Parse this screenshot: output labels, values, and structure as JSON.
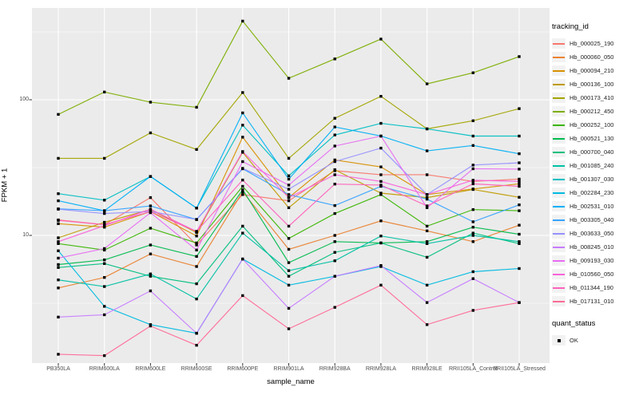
{
  "chart_data": {
    "type": "line",
    "title": "",
    "xlabel": "sample_name",
    "ylabel": "FPKM + 1",
    "y_scale": "log10",
    "y_ticks": [
      {
        "label": "100",
        "value": 100
      },
      {
        "label": "10",
        "value": 10
      }
    ],
    "y_minor_gridlines": [
      316.23,
      31.623,
      3.1623
    ],
    "grid": true,
    "panel_background": "#ebebeb",
    "gridline_color": "#ffffff",
    "tick_color": "#333333",
    "tick_text_color": "#4d4d4d",
    "point_marker": "black-square",
    "categories": [
      "PB350LA",
      "RRIM600LA",
      "RRIM600LE",
      "RRIM600SE",
      "RRIM600PE",
      "RRIM901LA",
      "RRIM928BA",
      "RRIM928LA",
      "RRIM928LE",
      "RRII105LA_Control",
      "RRII105LA_Stressed"
    ],
    "series": [
      {
        "name": "Hb_000025_190",
        "color": "#F8766D",
        "values": [
          13,
          12,
          19,
          8.5,
          20,
          18,
          30,
          28,
          28,
          25,
          26
        ]
      },
      {
        "name": "Hb_000060_050",
        "color": "#EA8331",
        "values": [
          4.1,
          4.9,
          7.3,
          5.9,
          21,
          7.9,
          10,
          12.8,
          10.8,
          9.0,
          11.9
        ]
      },
      {
        "name": "Hb_000094_210",
        "color": "#D89000",
        "values": [
          12.2,
          11.5,
          15,
          9.9,
          53,
          19,
          36,
          32,
          20,
          22,
          24
        ]
      },
      {
        "name": "Hb_000136_100",
        "color": "#C09B00",
        "values": [
          9.6,
          12.5,
          15.5,
          10.5,
          41,
          16,
          30.5,
          20.5,
          19,
          21.8,
          19.1
        ]
      },
      {
        "name": "Hb_000173_410",
        "color": "#A3A500",
        "values": [
          37,
          37,
          57,
          43,
          113,
          37,
          73,
          106,
          61,
          70,
          86
        ]
      },
      {
        "name": "Hb_000212_450",
        "color": "#7CAE00",
        "values": [
          78,
          114,
          96,
          88,
          380,
          144,
          200,
          280,
          131,
          158,
          208
        ]
      },
      {
        "name": "Hb_000252_100",
        "color": "#39B600",
        "values": [
          8.7,
          7.8,
          11.3,
          8.8,
          23,
          9.5,
          14.5,
          20,
          11.7,
          15.5,
          15.2
        ]
      },
      {
        "name": "Hb_000521_130",
        "color": "#00BB4E",
        "values": [
          6.1,
          6.6,
          8.5,
          7.0,
          21.7,
          6.3,
          9.0,
          8.8,
          9.0,
          11.5,
          10.2
        ]
      },
      {
        "name": "Hb_000700_040",
        "color": "#00BF7D",
        "values": [
          5.8,
          6.2,
          5.0,
          4.4,
          11.7,
          5.0,
          7.5,
          8.8,
          6.9,
          10.4,
          8.7
        ]
      },
      {
        "name": "Hb_001085_240",
        "color": "#00C1A3",
        "values": [
          4.7,
          4.2,
          5.2,
          3.4,
          10.4,
          5.5,
          6.5,
          9.9,
          8.7,
          10.0,
          9.0
        ]
      },
      {
        "name": "Hb_001307_030",
        "color": "#00BFC4",
        "values": [
          20.3,
          18.2,
          27.2,
          15.9,
          65,
          27.5,
          55,
          67,
          61,
          54,
          54
        ]
      },
      {
        "name": "Hb_002284_230",
        "color": "#00BAE0",
        "values": [
          7.7,
          3.0,
          2.2,
          1.9,
          6.7,
          4.3,
          5.0,
          5.9,
          4.3,
          5.4,
          5.7
        ]
      },
      {
        "name": "Hb_002531_010",
        "color": "#00B0F6",
        "values": [
          18,
          15.2,
          27.2,
          15.9,
          80,
          26,
          63,
          54,
          42,
          46,
          40
        ]
      },
      {
        "name": "Hb_003305_040",
        "color": "#35A2FF",
        "values": [
          15.7,
          15.2,
          16.5,
          13.1,
          31,
          20,
          16.6,
          23,
          18.5,
          12.6,
          16.8
        ]
      },
      {
        "name": "Hb_003633_050",
        "color": "#9590FF",
        "values": [
          15.6,
          14.5,
          15.0,
          13.1,
          31.2,
          21.9,
          35,
          44,
          20,
          33,
          34.3
        ]
      },
      {
        "name": "Hb_008245_010",
        "color": "#C77CFF",
        "values": [
          2.5,
          2.6,
          3.9,
          1.9,
          6.7,
          2.9,
          5.0,
          6.0,
          3.2,
          4.8,
          3.2
        ]
      },
      {
        "name": "Hb_009193_030",
        "color": "#E76BF3",
        "values": [
          6.8,
          8.0,
          14.7,
          7.8,
          35,
          23.5,
          45.6,
          54,
          16,
          31,
          30.8
        ]
      },
      {
        "name": "Hb_010560_050",
        "color": "#FA62DB",
        "values": [
          9.0,
          11.8,
          15.6,
          10.7,
          41.5,
          19,
          28,
          25,
          20,
          25.5,
          25
        ]
      },
      {
        "name": "Hb_011344_190",
        "color": "#FF62BC",
        "values": [
          12.9,
          12,
          15,
          10.7,
          25.6,
          11.7,
          23.9,
          23.5,
          16.5,
          24,
          23
        ]
      },
      {
        "name": "Hb_017131_010",
        "color": "#FF6A98",
        "values": [
          1.33,
          1.3,
          2.15,
          1.55,
          3.6,
          2.05,
          2.95,
          4.3,
          2.2,
          2.8,
          3.2
        ]
      }
    ],
    "legend": {
      "tracking_title": "tracking_id",
      "quant_title": "quant_status",
      "quant_items": [
        {
          "label": "OK"
        }
      ],
      "position": "right"
    }
  }
}
